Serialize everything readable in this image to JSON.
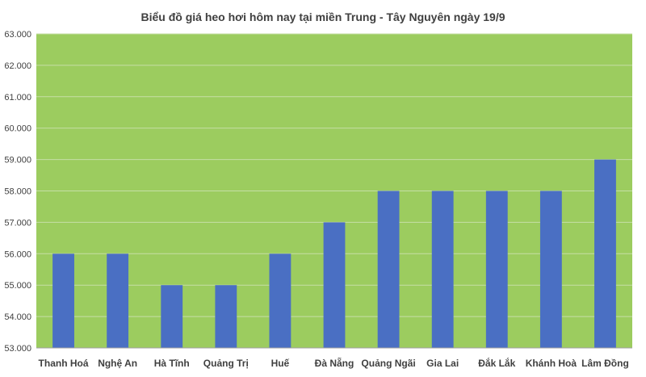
{
  "chart_data": {
    "type": "bar",
    "title": "Biểu đồ giá heo hơi hôm nay tại miền Trung - Tây Nguyên ngày 19/9",
    "xlabel": "",
    "ylabel": "",
    "categories": [
      "Thanh Hoá",
      "Nghệ An",
      "Hà Tĩnh",
      "Quảng Trị",
      "Huế",
      "Đà Nẵng",
      "Quảng Ngãi",
      "Gia Lai",
      "Đắk Lắk",
      "Khánh Hoà",
      "Lâm Đồng"
    ],
    "values": [
      56000,
      56000,
      55000,
      55000,
      56000,
      57000,
      58000,
      58000,
      58000,
      58000,
      59000
    ],
    "ylim": [
      53000,
      63000
    ],
    "yticks": [
      53000,
      54000,
      55000,
      56000,
      57000,
      58000,
      59000,
      60000,
      61000,
      62000,
      63000
    ],
    "ytick_labels": [
      "53.000",
      "54.000",
      "55.000",
      "56.000",
      "57.000",
      "58.000",
      "59.000",
      "60.000",
      "61.000",
      "62.000",
      "63.000"
    ],
    "grid": true,
    "legend": "none",
    "colors": {
      "plot_background": "#9ccc5f",
      "bar": "#4a6fc3",
      "gridline": "#c6dea6",
      "axis": "#a0a0a0",
      "text": "#404040"
    }
  }
}
